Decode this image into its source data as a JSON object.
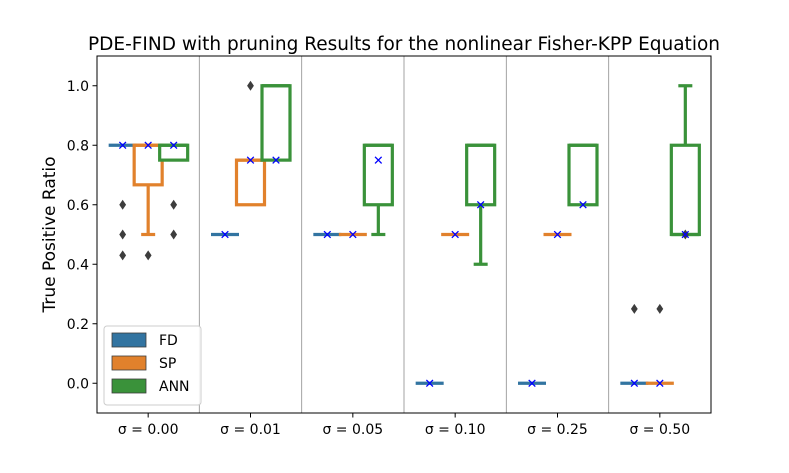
{
  "chart_data": {
    "type": "box",
    "title": "PDE-FIND with pruning Results for the nonlinear Fisher-KPP Equation",
    "xlabel": "",
    "ylabel": "True Positive Ratio",
    "ylim": [
      -0.1,
      1.1
    ],
    "yticks": [
      "0.0",
      "0.2",
      "0.4",
      "0.6",
      "0.8",
      "1.0"
    ],
    "categories": [
      "σ = 0.00",
      "σ = 0.01",
      "σ = 0.05",
      "σ = 0.10",
      "σ = 0.25",
      "σ = 0.50"
    ],
    "legend_position": "lower-left",
    "grid": false,
    "series": [
      {
        "name": "FD",
        "color": "#3274a1",
        "boxes": [
          {
            "q1": 0.8,
            "median": 0.8,
            "q3": 0.8,
            "whislo": 0.8,
            "whishi": 0.8,
            "mean": 0.8,
            "fliers": [
              0.6,
              0.5,
              0.43
            ]
          },
          {
            "q1": 0.5,
            "median": 0.5,
            "q3": 0.5,
            "whislo": 0.5,
            "whishi": 0.5,
            "mean": 0.5,
            "fliers": []
          },
          {
            "q1": 0.5,
            "median": 0.5,
            "q3": 0.5,
            "whislo": 0.5,
            "whishi": 0.5,
            "mean": 0.5,
            "fliers": []
          },
          {
            "q1": 0.0,
            "median": 0.0,
            "q3": 0.0,
            "whislo": 0.0,
            "whishi": 0.0,
            "mean": 0.0,
            "fliers": []
          },
          {
            "q1": 0.0,
            "median": 0.0,
            "q3": 0.0,
            "whislo": 0.0,
            "whishi": 0.0,
            "mean": 0.0,
            "fliers": []
          },
          {
            "q1": 0.0,
            "median": 0.0,
            "q3": 0.0,
            "whislo": 0.0,
            "whishi": 0.0,
            "mean": 0.0,
            "fliers": [
              0.25
            ]
          }
        ]
      },
      {
        "name": "SP",
        "color": "#e1812c",
        "boxes": [
          {
            "q1": 0.667,
            "median": 0.8,
            "q3": 0.8,
            "whislo": 0.5,
            "whishi": 0.8,
            "mean": 0.8,
            "fliers": [
              0.43
            ]
          },
          {
            "q1": 0.6,
            "median": 0.75,
            "q3": 0.75,
            "whislo": 0.6,
            "whishi": 0.75,
            "mean": 0.75,
            "fliers": [
              1.0
            ]
          },
          {
            "q1": 0.5,
            "median": 0.5,
            "q3": 0.5,
            "whislo": 0.5,
            "whishi": 0.5,
            "mean": 0.5,
            "fliers": []
          },
          {
            "q1": 0.5,
            "median": 0.5,
            "q3": 0.5,
            "whislo": 0.5,
            "whishi": 0.5,
            "mean": 0.5,
            "fliers": []
          },
          {
            "q1": 0.5,
            "median": 0.5,
            "q3": 0.5,
            "whislo": 0.5,
            "whishi": 0.5,
            "mean": 0.5,
            "fliers": []
          },
          {
            "q1": 0.0,
            "median": 0.0,
            "q3": 0.0,
            "whislo": 0.0,
            "whishi": 0.0,
            "mean": 0.0,
            "fliers": [
              0.25
            ]
          }
        ]
      },
      {
        "name": "ANN",
        "color": "#3a923a",
        "boxes": [
          {
            "q1": 0.75,
            "median": 0.8,
            "q3": 0.8,
            "whislo": 0.75,
            "whishi": 0.8,
            "mean": 0.8,
            "fliers": [
              0.6,
              0.5
            ]
          },
          {
            "q1": 0.75,
            "median": 1.0,
            "q3": 1.0,
            "whislo": 0.75,
            "whishi": 1.0,
            "mean": 0.75,
            "fliers": []
          },
          {
            "q1": 0.6,
            "median": 0.8,
            "q3": 0.8,
            "whislo": 0.5,
            "whishi": 0.8,
            "mean": 0.75,
            "fliers": []
          },
          {
            "q1": 0.6,
            "median": 0.8,
            "q3": 0.8,
            "whislo": 0.4,
            "whishi": 0.8,
            "mean": 0.6,
            "fliers": []
          },
          {
            "q1": 0.6,
            "median": 0.8,
            "q3": 0.8,
            "whislo": 0.6,
            "whishi": 0.8,
            "mean": 0.6,
            "fliers": []
          },
          {
            "q1": 0.5,
            "median": 0.5,
            "q3": 0.8,
            "whislo": 0.5,
            "whishi": 1.0,
            "mean": 0.5,
            "fliers": [
              0.5
            ]
          }
        ]
      }
    ],
    "mean_marker": {
      "symbol": "x",
      "color": "#0000ff"
    },
    "flier_color": "#3d3d3d",
    "separator_color": "#999999"
  }
}
